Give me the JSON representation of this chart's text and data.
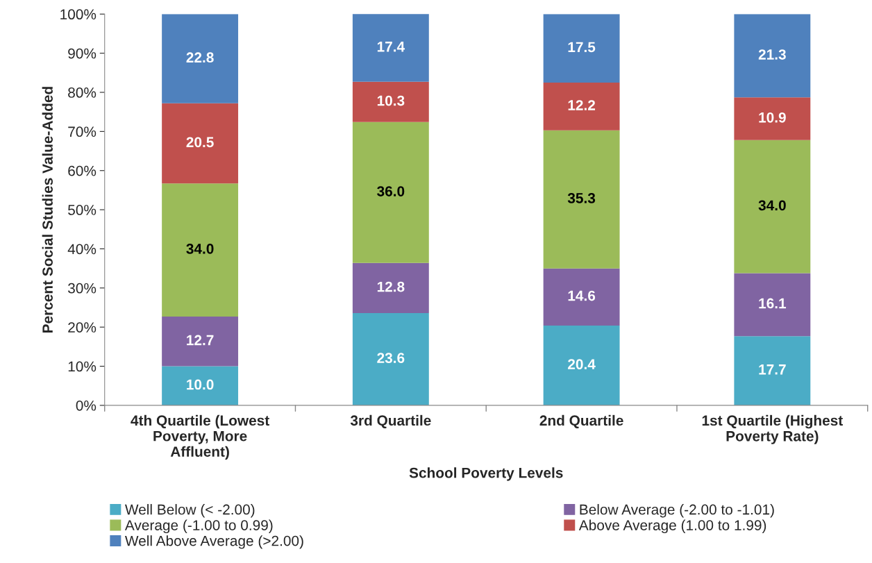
{
  "chart_data": {
    "type": "bar",
    "stacked": true,
    "xlabel": "School Poverty Levels",
    "ylabel": "Percent Social Studies Value-Added",
    "categories": [
      "4th Quartile (Lowest\nPoverty, More\nAffluent)",
      "3rd Quartile",
      "2nd Quartile",
      "1st Quartile (Highest\nPoverty Rate)"
    ],
    "series": [
      {
        "name": "Well Below (< -2.00)",
        "color": "#4bacc6",
        "values": [
          10.0,
          23.6,
          20.4,
          17.7
        ],
        "value_labels": [
          "10.0",
          "23.6",
          "20.4",
          "17.7"
        ]
      },
      {
        "name": "Below Average (-2.00 to -1.01)",
        "color": "#8064a2",
        "values": [
          12.7,
          12.8,
          14.6,
          16.1
        ],
        "value_labels": [
          "12.7",
          "12.8",
          "14.6",
          "16.1"
        ]
      },
      {
        "name": "Average (-1.00 to 0.99)",
        "color": "#9bbb59",
        "values": [
          34.0,
          36.0,
          35.3,
          34.0
        ],
        "value_labels": [
          "34.0",
          "36.0",
          "35.3",
          "34.0"
        ]
      },
      {
        "name": "Above Average (1.00 to 1.99)",
        "color": "#c0504d",
        "values": [
          20.5,
          10.3,
          12.2,
          10.9
        ],
        "value_labels": [
          "20.5",
          "10.3",
          "12.2",
          "10.9"
        ]
      },
      {
        "name": "Well Above Average (>2.00)",
        "color": "#4f81bd",
        "values": [
          22.8,
          17.4,
          17.5,
          21.3
        ],
        "value_labels": [
          "22.8",
          "17.4",
          "17.5",
          "21.3"
        ]
      }
    ],
    "ylim": [
      0,
      100
    ],
    "yticks": [
      {
        "value": 0,
        "label": "0%"
      },
      {
        "value": 10,
        "label": "10%"
      },
      {
        "value": 20,
        "label": "20%"
      },
      {
        "value": 30,
        "label": "30%"
      },
      {
        "value": 40,
        "label": "40%"
      },
      {
        "value": 50,
        "label": "50%"
      },
      {
        "value": 60,
        "label": "60%"
      },
      {
        "value": 70,
        "label": "70%"
      },
      {
        "value": 80,
        "label": "80%"
      },
      {
        "value": 90,
        "label": "90%"
      },
      {
        "value": 100,
        "label": "100%"
      }
    ],
    "grid": false,
    "legend": "bottom"
  }
}
